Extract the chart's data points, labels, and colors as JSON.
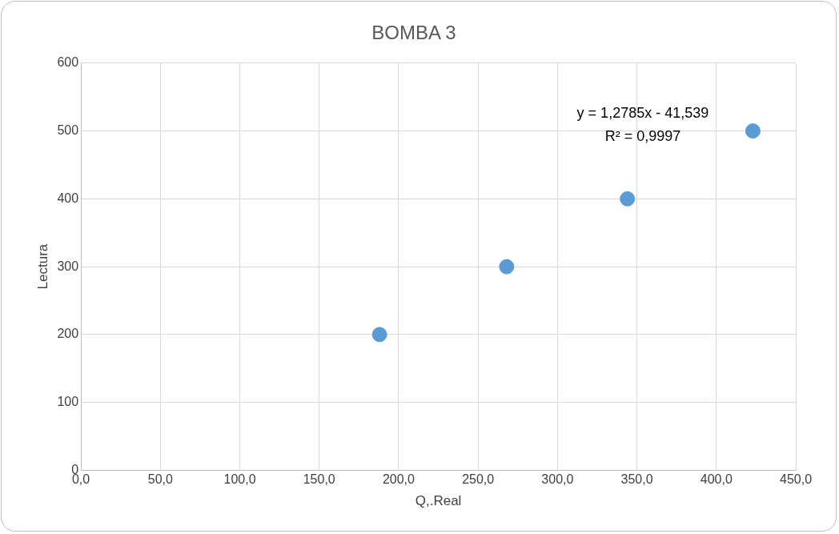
{
  "chart_data": {
    "type": "scatter",
    "title": "BOMBA 3",
    "xlabel": "Q,.Real",
    "ylabel": "Lectura",
    "x": [
      188,
      268,
      344,
      423
    ],
    "series": [
      {
        "color": "#5b9bd5",
        "values": [
          200,
          300,
          400,
          500
        ]
      }
    ],
    "xlim": [
      0,
      450
    ],
    "xticks": [
      {
        "value": 0,
        "label": "0,0"
      },
      {
        "value": 50,
        "label": "50,0"
      },
      {
        "value": 100,
        "label": "100,0"
      },
      {
        "value": 150,
        "label": "150,0"
      },
      {
        "value": 200,
        "label": "200,0"
      },
      {
        "value": 250,
        "label": "250,0"
      },
      {
        "value": 300,
        "label": "300,0"
      },
      {
        "value": 350,
        "label": "350,0"
      },
      {
        "value": 400,
        "label": "400,0"
      },
      {
        "value": 450,
        "label": "450,0"
      }
    ],
    "ylim": [
      0,
      600
    ],
    "yticks": [
      0,
      100,
      200,
      300,
      400,
      500,
      600
    ],
    "grid": true,
    "legend": false,
    "marker": "circle",
    "annotations": [
      "y = 1,2785x - 41,539",
      "R² = 0,9997"
    ]
  }
}
